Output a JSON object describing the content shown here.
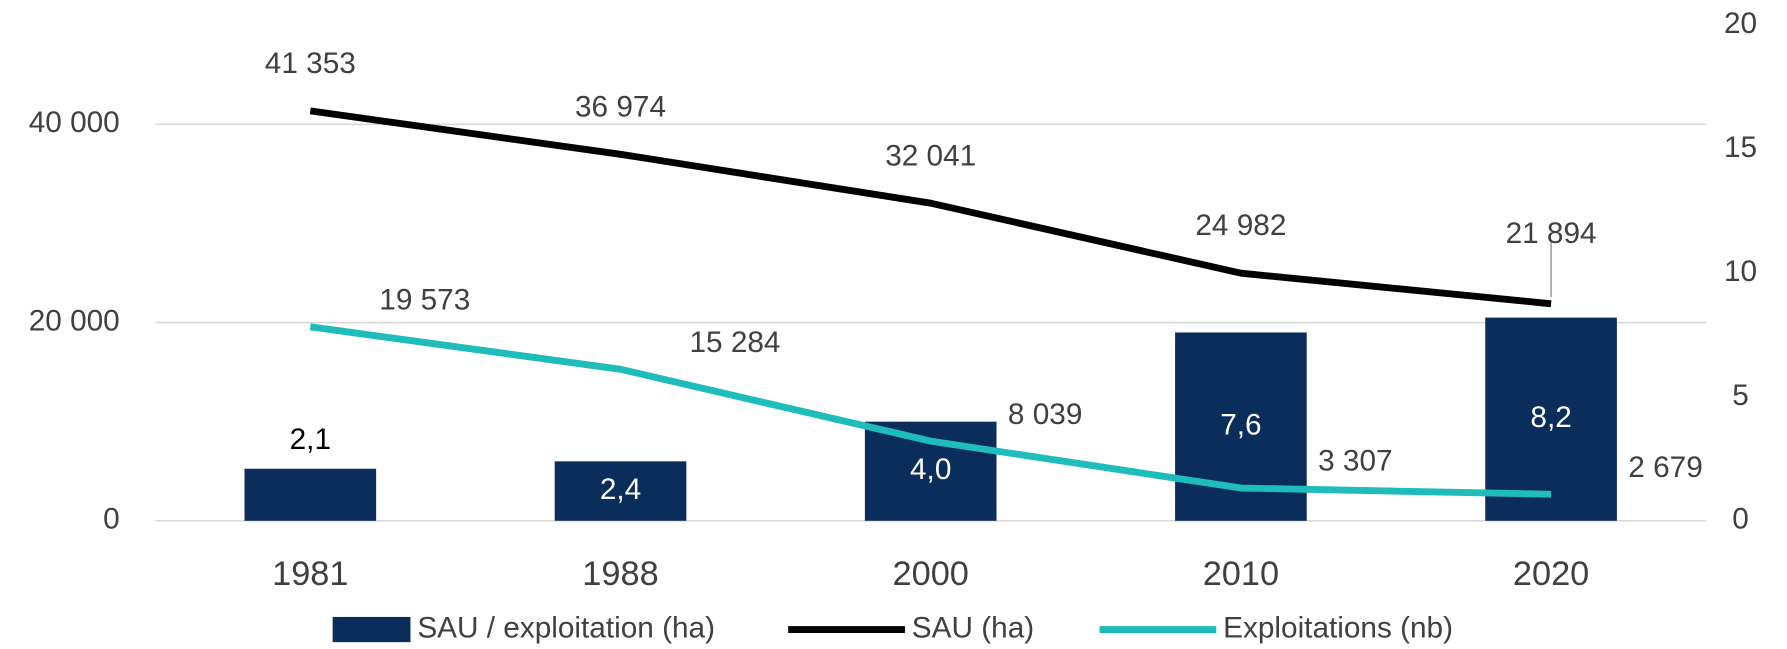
{
  "chart_data": {
    "type": "combo",
    "categories": [
      "1981",
      "1988",
      "2000",
      "2010",
      "2020"
    ],
    "series": [
      {
        "name": "SAU / exploitation (ha)",
        "type": "bar",
        "axis": "y2",
        "color": "#0b2d5b",
        "values": [
          2.1,
          2.4,
          4.0,
          7.6,
          8.2
        ],
        "value_labels": [
          "2,1",
          "2,4",
          "4,0",
          "7,6",
          "8,2"
        ]
      },
      {
        "name": "SAU (ha)",
        "type": "line",
        "axis": "y",
        "color": "#000000",
        "values": [
          41353,
          36974,
          32041,
          24982,
          21894
        ],
        "value_labels": [
          "41 353",
          "36 974",
          "32 041",
          "24 982",
          "21 894"
        ]
      },
      {
        "name": "Exploitations (nb)",
        "type": "line",
        "axis": "y",
        "color": "#1fbcbc",
        "values": [
          19573,
          15284,
          8039,
          3307,
          2679
        ],
        "value_labels": [
          "19 573",
          "15 284",
          "8 039",
          "3 307",
          "2 679"
        ]
      }
    ],
    "ylim": [
      0,
      50000
    ],
    "yticks": [
      0,
      {
        "value": 20000,
        "label": "20 000"
      },
      {
        "value": 40000,
        "label": "40 000"
      }
    ],
    "y2lim": [
      0,
      20
    ],
    "y2ticks": [
      0,
      5,
      10,
      15,
      20
    ],
    "grid": true,
    "legend": "bottom"
  }
}
